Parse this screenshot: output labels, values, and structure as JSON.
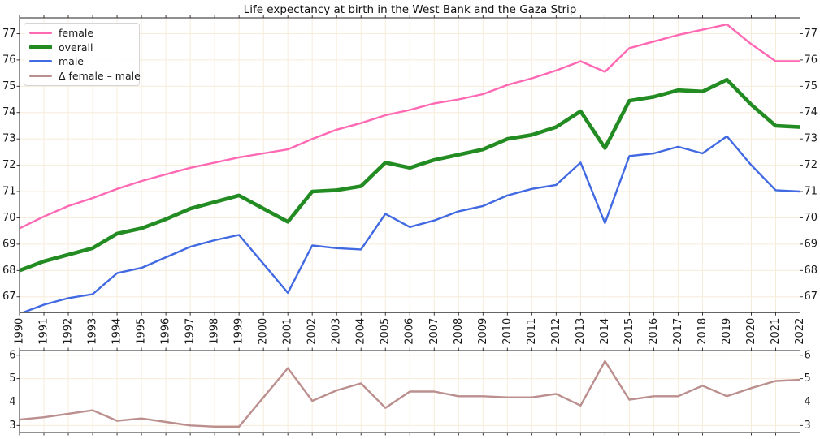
{
  "title": "Life expectancy at birth in the West Bank and the Gaza Strip",
  "colors": {
    "female": "#FF69B4",
    "overall": "#228B22",
    "male": "#4169E1",
    "delta": "#BC8F8F",
    "grid": "#f7ecda",
    "axis": "#222222",
    "background": "#ffffff"
  },
  "legend": {
    "entries": [
      {
        "label": "female",
        "color": "#FF69B4",
        "thickness": 3
      },
      {
        "label": "overall",
        "color": "#228B22",
        "thickness": 6
      },
      {
        "label": "male",
        "color": "#4169E1",
        "thickness": 3
      },
      {
        "label": "Δ female – male",
        "color": "#BC8F8F",
        "thickness": 3
      }
    ]
  },
  "chart_data": [
    {
      "type": "line",
      "title": "Life expectancy at birth in the West Bank and the Gaza Strip",
      "xlabel": "",
      "ylabel": "",
      "x": [
        1990,
        1991,
        1992,
        1993,
        1994,
        1995,
        1996,
        1997,
        1998,
        1999,
        2000,
        2001,
        2002,
        2003,
        2004,
        2005,
        2006,
        2007,
        2008,
        2009,
        2010,
        2011,
        2012,
        2013,
        2014,
        2015,
        2016,
        2017,
        2018,
        2019,
        2020,
        2021,
        2022
      ],
      "xticklabels": [
        "1990",
        "1991",
        "1992",
        "1993",
        "1994",
        "1995",
        "1996",
        "1997",
        "1998",
        "1999",
        "2000",
        "2001",
        "2002",
        "2003",
        "2004",
        "2005",
        "2006",
        "2007",
        "2008",
        "2009",
        "2010",
        "2011",
        "2012",
        "2013",
        "2014",
        "2015",
        "2016",
        "2017",
        "2018",
        "2019",
        "2020",
        "2021",
        "2022"
      ],
      "series": [
        {
          "name": "female",
          "color": "#FF69B4",
          "width": 2.4,
          "values": [
            69.6,
            70.05,
            70.45,
            70.75,
            71.1,
            71.4,
            71.65,
            71.9,
            72.1,
            72.3,
            72.45,
            72.6,
            73.0,
            73.35,
            73.6,
            73.9,
            74.1,
            74.35,
            74.5,
            74.7,
            75.05,
            75.3,
            75.6,
            75.95,
            75.55,
            76.45,
            76.7,
            76.95,
            77.15,
            77.35,
            76.6,
            75.95,
            75.95
          ]
        },
        {
          "name": "overall",
          "color": "#228B22",
          "width": 4.6,
          "values": [
            68.0,
            68.35,
            68.6,
            68.85,
            69.4,
            69.6,
            69.95,
            70.35,
            70.6,
            70.85,
            70.35,
            69.85,
            71.0,
            71.05,
            71.2,
            72.1,
            71.9,
            72.2,
            72.4,
            72.6,
            73.0,
            73.15,
            73.45,
            74.05,
            72.65,
            74.45,
            74.6,
            74.85,
            74.8,
            75.25,
            74.3,
            73.5,
            73.45
          ]
        },
        {
          "name": "male",
          "color": "#4169E1",
          "width": 2.4,
          "values": [
            66.35,
            66.7,
            66.95,
            67.1,
            67.9,
            68.1,
            68.5,
            68.9,
            69.15,
            69.35,
            68.25,
            67.15,
            68.95,
            68.85,
            68.8,
            70.15,
            69.65,
            69.9,
            70.25,
            70.45,
            70.85,
            71.1,
            71.25,
            72.1,
            69.8,
            72.35,
            72.45,
            72.7,
            72.45,
            73.1,
            72.0,
            71.05,
            71.0
          ]
        }
      ],
      "xlim": [
        1990,
        2022
      ],
      "ylim": [
        66.4,
        77.6
      ],
      "yticks": [
        67,
        68,
        69,
        70,
        71,
        72,
        73,
        74,
        75,
        76,
        77
      ],
      "grid": true,
      "legend_position": "upper left"
    },
    {
      "type": "line",
      "title": "",
      "xlabel": "",
      "ylabel": "",
      "x": [
        1990,
        1991,
        1992,
        1993,
        1994,
        1995,
        1996,
        1997,
        1998,
        1999,
        2000,
        2001,
        2002,
        2003,
        2004,
        2005,
        2006,
        2007,
        2008,
        2009,
        2010,
        2011,
        2012,
        2013,
        2014,
        2015,
        2016,
        2017,
        2018,
        2019,
        2020,
        2021,
        2022
      ],
      "series": [
        {
          "name": "Δ female – male",
          "color": "#BC8F8F",
          "width": 2.4,
          "values": [
            3.25,
            3.35,
            3.5,
            3.65,
            3.2,
            3.3,
            3.15,
            3.0,
            2.95,
            2.95,
            4.2,
            5.45,
            4.05,
            4.5,
            4.8,
            3.75,
            4.45,
            4.45,
            4.25,
            4.25,
            4.2,
            4.2,
            4.35,
            3.85,
            5.75,
            4.1,
            4.25,
            4.25,
            4.7,
            4.25,
            4.6,
            4.9,
            4.95
          ]
        }
      ],
      "xlim": [
        1990,
        2022
      ],
      "ylim": [
        2.7,
        6.2
      ],
      "yticks": [
        3,
        4,
        5,
        6
      ],
      "grid": true,
      "legend_position": "none"
    }
  ]
}
